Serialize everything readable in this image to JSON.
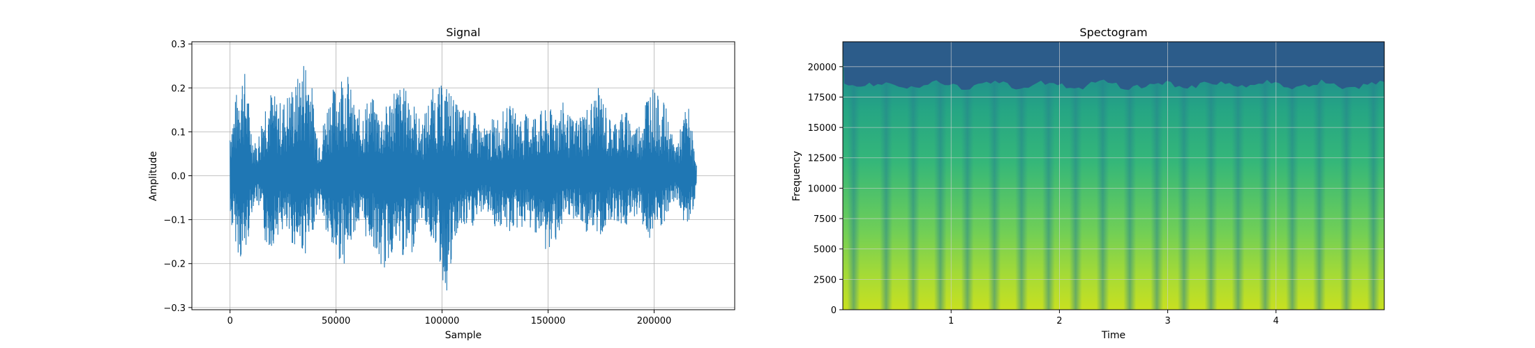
{
  "chart_data": [
    {
      "type": "line",
      "title": "Signal",
      "xlabel": "Sample",
      "ylabel": "Amplitude",
      "xlim": [
        -18000,
        238000
      ],
      "ylim": [
        -0.305,
        0.305
      ],
      "xticks": [
        0,
        50000,
        100000,
        150000,
        200000
      ],
      "xtick_labels": [
        "0",
        "50000",
        "100000",
        "150000",
        "200000"
      ],
      "yticks": [
        -0.3,
        -0.2,
        -0.1,
        0.0,
        0.1,
        0.2,
        0.3
      ],
      "ytick_labels": [
        "−0.3",
        "−0.2",
        "−0.1",
        "0.0",
        "0.1",
        "0.2",
        "0.3"
      ],
      "grid": true,
      "color": "#1f77b4",
      "x_range": [
        0,
        220000
      ],
      "envelope": {
        "x": [
          0,
          6000,
          12000,
          18000,
          24000,
          30000,
          36000,
          42000,
          48000,
          54000,
          60000,
          66000,
          72000,
          78000,
          84000,
          90000,
          96000,
          102000,
          108000,
          114000,
          120000,
          126000,
          132000,
          138000,
          144000,
          150000,
          156000,
          162000,
          168000,
          174000,
          180000,
          186000,
          192000,
          198000,
          204000,
          210000,
          216000,
          220000
        ],
        "upper": [
          0.13,
          0.25,
          0.08,
          0.2,
          0.17,
          0.21,
          0.28,
          0.1,
          0.2,
          0.25,
          0.15,
          0.18,
          0.15,
          0.21,
          0.2,
          0.13,
          0.2,
          0.21,
          0.16,
          0.15,
          0.11,
          0.14,
          0.16,
          0.14,
          0.15,
          0.15,
          0.17,
          0.13,
          0.16,
          0.2,
          0.13,
          0.15,
          0.12,
          0.21,
          0.17,
          0.08,
          0.16,
          0.04
        ],
        "lower": [
          -0.12,
          -0.2,
          -0.06,
          -0.17,
          -0.13,
          -0.16,
          -0.18,
          -0.08,
          -0.18,
          -0.2,
          -0.12,
          -0.15,
          -0.22,
          -0.17,
          -0.2,
          -0.1,
          -0.15,
          -0.27,
          -0.13,
          -0.12,
          -0.08,
          -0.12,
          -0.13,
          -0.12,
          -0.13,
          -0.18,
          -0.13,
          -0.1,
          -0.13,
          -0.14,
          -0.1,
          -0.12,
          -0.09,
          -0.15,
          -0.12,
          -0.06,
          -0.12,
          -0.05
        ]
      }
    },
    {
      "type": "heatmap",
      "title": "Spectogram",
      "xlabel": "Time",
      "ylabel": "Frequency",
      "xlim": [
        0,
        5.0
      ],
      "ylim": [
        0,
        22050
      ],
      "xticks": [
        1,
        2,
        3,
        4
      ],
      "xtick_labels": [
        "1",
        "2",
        "3",
        "4"
      ],
      "yticks": [
        0,
        2500,
        5000,
        7500,
        10000,
        12500,
        15000,
        17500,
        20000
      ],
      "ytick_labels": [
        "0",
        "2500",
        "5000",
        "7500",
        "10000",
        "12500",
        "15000",
        "17500",
        "20000"
      ],
      "grid": true,
      "colormap": "viridis",
      "cutoff_frequency": 18500,
      "band_centers_time": [
        0.1,
        0.4,
        0.65,
        0.9,
        1.15,
        1.4,
        1.65,
        1.9,
        2.15,
        2.4,
        2.65,
        2.9,
        3.15,
        3.4,
        3.65,
        3.9,
        4.15,
        4.4,
        4.65,
        4.9
      ]
    }
  ]
}
